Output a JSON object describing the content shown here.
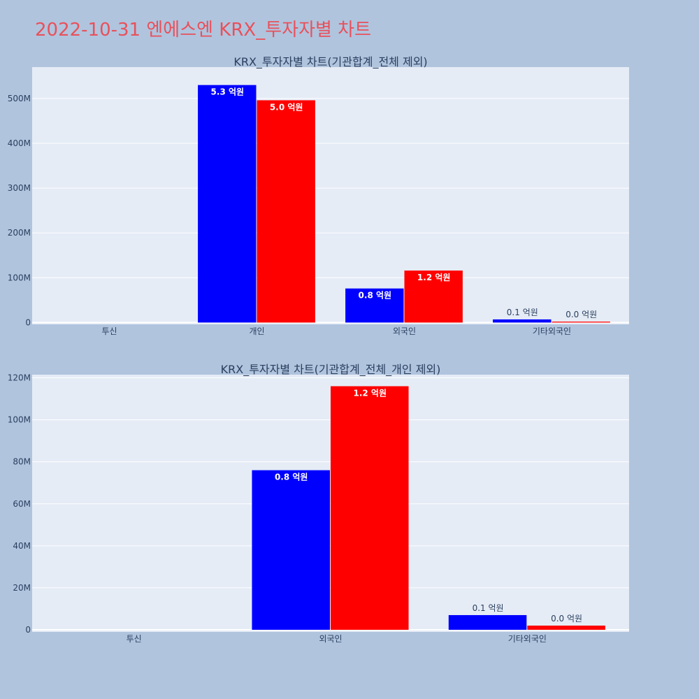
{
  "page": {
    "title": "2022-10-31 엔에스엔 KRX_투자자별 차트"
  },
  "colors": {
    "background": "#b0c4de",
    "plot_bg": "#e5ecf6",
    "title": "#e8515b",
    "series_a": "#0000ff",
    "series_b": "#ff0000"
  },
  "chart_data": [
    {
      "type": "bar",
      "title": "KRX_투자자별 차트(기관합계_전체 제외)",
      "categories": [
        "투신",
        "개인",
        "외국인",
        "기타외국인"
      ],
      "series": [
        {
          "color": "#0000ff",
          "values": [
            0,
            530000000,
            76000000,
            7000000
          ],
          "labels": [
            "",
            "5.3 억원",
            "0.8 억원",
            "0.1 억원"
          ]
        },
        {
          "color": "#ff0000",
          "values": [
            0,
            496000000,
            116000000,
            2000000
          ],
          "labels": [
            "",
            "5.0 억원",
            "1.2 억원",
            "0.0 억원"
          ]
        }
      ],
      "ylim": [
        -4000000,
        570000000
      ],
      "yticks": [
        0,
        100000000,
        200000000,
        300000000,
        400000000,
        500000000
      ],
      "yticklabels": [
        "0",
        "100M",
        "200M",
        "300M",
        "400M",
        "500M"
      ],
      "grid": true
    },
    {
      "type": "bar",
      "title": "KRX_투자자별 차트(기관합계_전체_개인 제외)",
      "categories": [
        "투신",
        "외국인",
        "기타외국인"
      ],
      "series": [
        {
          "color": "#0000ff",
          "values": [
            0,
            76000000,
            7000000
          ],
          "labels": [
            "",
            "0.8 억원",
            "0.1 억원"
          ]
        },
        {
          "color": "#ff0000",
          "values": [
            0,
            116000000,
            2000000
          ],
          "labels": [
            "",
            "1.2 억원",
            "0.0 억원"
          ]
        }
      ],
      "ylim": [
        -1000000,
        121500000
      ],
      "yticks": [
        0,
        20000000,
        40000000,
        60000000,
        80000000,
        100000000,
        120000000
      ],
      "yticklabels": [
        "0",
        "20M",
        "40M",
        "60M",
        "80M",
        "100M",
        "120M"
      ],
      "grid": true
    }
  ]
}
